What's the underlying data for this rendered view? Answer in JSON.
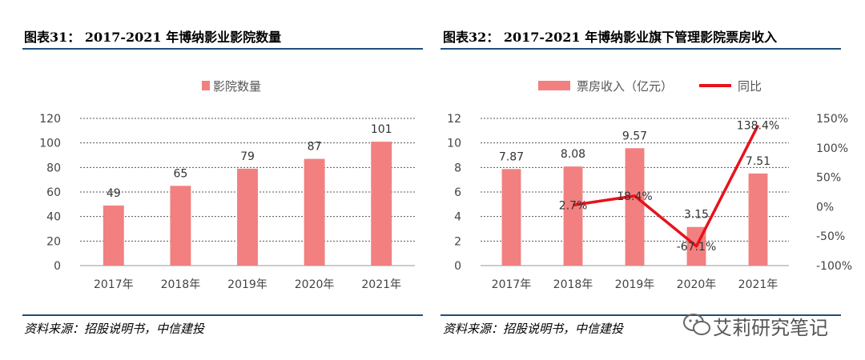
{
  "left": {
    "title": "图表31： 2017-2021 年博纳影业影院数量",
    "source": "资料来源：招股说明书，中信建投"
  },
  "right": {
    "title": "图表32： 2017-2021 年博纳影业旗下管理影院票房收入",
    "source": "资料来源：招股说明书，中信建投"
  },
  "watermark": {
    "text": "艾莉研究笔记",
    "icon": "wechat-icon"
  },
  "colors": {
    "bar": "#f28080",
    "line": "#e8121b",
    "rule": "#1f4e79",
    "grid": "#555555"
  },
  "chart_data": [
    {
      "type": "bar",
      "categories": [
        "2017年",
        "2018年",
        "2019年",
        "2020年",
        "2021年"
      ],
      "series": [
        {
          "name": "影院数量",
          "values": [
            49,
            65,
            79,
            87,
            101
          ],
          "labels": [
            "49",
            "65",
            "79",
            "87",
            "101"
          ]
        }
      ],
      "yticks": [
        "0",
        "20",
        "40",
        "60",
        "80",
        "100",
        "120"
      ],
      "ylim": [
        0,
        120
      ],
      "legend": "top-center",
      "grid": true
    },
    {
      "type": "bar",
      "categories": [
        "2017年",
        "2018年",
        "2019年",
        "2020年",
        "2021年"
      ],
      "series": [
        {
          "name": "票房收入（亿元）",
          "type": "bar",
          "axis": "left",
          "values": [
            7.87,
            8.08,
            9.57,
            3.15,
            7.51
          ],
          "labels": [
            "7.87",
            "8.08",
            "9.57",
            "3.15",
            "7.51"
          ]
        },
        {
          "name": "同比",
          "type": "line",
          "axis": "right",
          "values": [
            null,
            2.7,
            18.4,
            -67.1,
            138.4
          ],
          "labels": [
            "",
            "2.7%",
            "18.4%",
            "-67.1%",
            "138.4%"
          ]
        }
      ],
      "yticks": [
        "0",
        "2",
        "4",
        "6",
        "8",
        "10",
        "12"
      ],
      "ylim": [
        0,
        12
      ],
      "y2ticks": [
        "-100%",
        "-50%",
        "0%",
        "50%",
        "100%",
        "150%"
      ],
      "y2lim": [
        -100,
        150
      ],
      "legend": "top-center",
      "grid": true
    }
  ]
}
